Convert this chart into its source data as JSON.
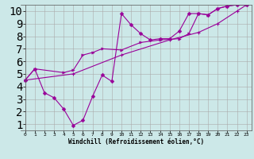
{
  "background_color": "#cce8e8",
  "grid_color": "#aaaaaa",
  "line_color": "#990099",
  "xlabel": "Windchill (Refroidissement éolien,°C)",
  "xlim": [
    -0.5,
    23.5
  ],
  "ylim": [
    0.5,
    10.5
  ],
  "xticks": [
    0,
    1,
    2,
    3,
    4,
    5,
    6,
    7,
    8,
    9,
    10,
    11,
    12,
    13,
    14,
    15,
    16,
    17,
    18,
    19,
    20,
    21,
    22,
    23
  ],
  "yticks": [
    1,
    2,
    3,
    4,
    5,
    6,
    7,
    8,
    9,
    10
  ],
  "line1_x": [
    0,
    1,
    2,
    3,
    4,
    5,
    6,
    7,
    8,
    9,
    10,
    11,
    12,
    13,
    14,
    15,
    16,
    17,
    18,
    19,
    20,
    21,
    22,
    23
  ],
  "line1_y": [
    4.5,
    5.4,
    3.5,
    3.1,
    2.2,
    0.9,
    1.3,
    3.2,
    4.9,
    4.4,
    9.8,
    8.9,
    8.2,
    7.7,
    7.8,
    7.8,
    8.4,
    9.8,
    9.8,
    9.7,
    10.2,
    10.4,
    10.5,
    10.5
  ],
  "line2_x": [
    0,
    1,
    4,
    5,
    6,
    7,
    8,
    10,
    12,
    14,
    16,
    17,
    18,
    19,
    20,
    21,
    22,
    23
  ],
  "line2_y": [
    4.5,
    5.4,
    5.1,
    5.3,
    6.5,
    6.7,
    7.0,
    6.9,
    7.5,
    7.7,
    7.8,
    8.2,
    9.8,
    9.7,
    10.2,
    10.4,
    10.5,
    10.5
  ],
  "line3_x": [
    0,
    5,
    10,
    15,
    18,
    20,
    22,
    23
  ],
  "line3_y": [
    4.5,
    5.0,
    6.5,
    7.7,
    8.3,
    9.0,
    10.0,
    10.5
  ],
  "marker_size": 2.5,
  "linewidth": 0.8,
  "tick_fontsize": 4.5,
  "xlabel_fontsize": 5.5
}
